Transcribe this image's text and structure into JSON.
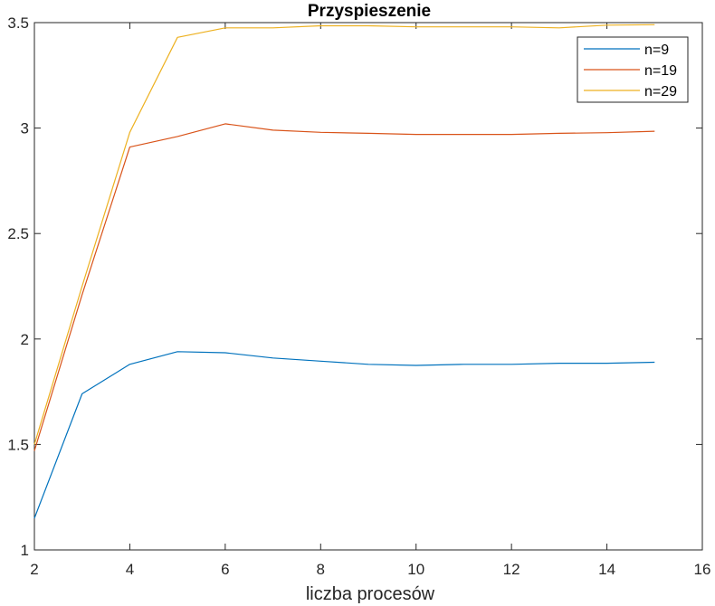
{
  "chart_data": {
    "type": "line",
    "title": "Przyspieszenie",
    "xlabel": "liczba procesów",
    "ylabel": "",
    "xlim": [
      2,
      16
    ],
    "ylim": [
      1,
      3.5
    ],
    "xticks": [
      2,
      4,
      6,
      8,
      10,
      12,
      14,
      16
    ],
    "xtick_labels": [
      "2",
      "4",
      "6",
      "8",
      "10",
      "12",
      "14",
      "16"
    ],
    "yticks": [
      1,
      1.5,
      2,
      2.5,
      3,
      3.5
    ],
    "ytick_labels": [
      "1",
      "1.5",
      "2",
      "2.5",
      "3",
      "3.5"
    ],
    "grid": false,
    "legend_position": "top-right",
    "x": [
      2,
      3,
      4,
      5,
      6,
      7,
      8,
      9,
      10,
      11,
      12,
      13,
      14,
      15
    ],
    "series": [
      {
        "name": "n=9",
        "color": "#0072bd",
        "values": [
          1.15,
          1.74,
          1.88,
          1.94,
          1.935,
          1.91,
          1.895,
          1.88,
          1.875,
          1.88,
          1.88,
          1.885,
          1.885,
          1.89
        ]
      },
      {
        "name": "n=19",
        "color": "#d95319",
        "values": [
          1.47,
          2.21,
          2.91,
          2.96,
          3.02,
          2.99,
          2.98,
          2.975,
          2.97,
          2.97,
          2.97,
          2.975,
          2.978,
          2.985
        ]
      },
      {
        "name": "n=29",
        "color": "#edb120",
        "values": [
          1.5,
          2.25,
          2.98,
          3.43,
          3.475,
          3.475,
          3.485,
          3.485,
          3.48,
          3.48,
          3.48,
          3.475,
          3.488,
          3.49
        ]
      }
    ]
  }
}
